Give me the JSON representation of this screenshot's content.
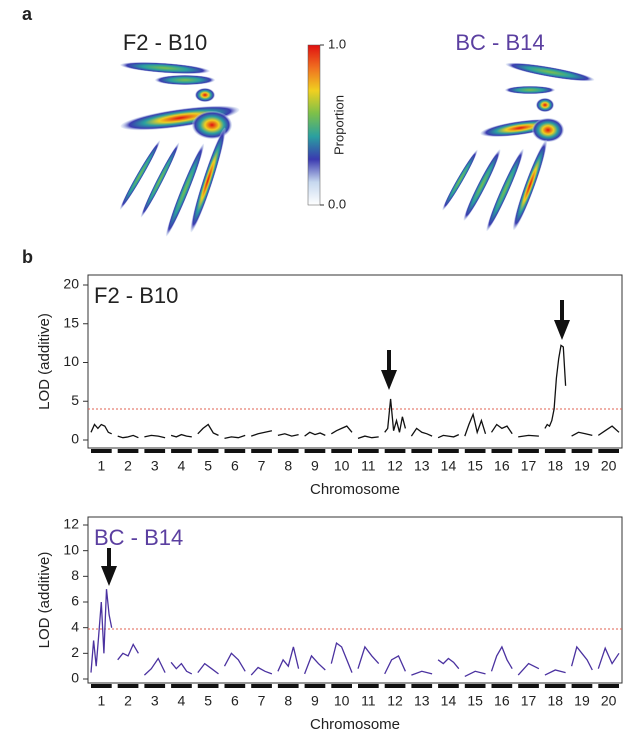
{
  "panel_labels": [
    "a",
    "b"
  ],
  "chart_data": [
    {
      "type": "colorbar",
      "titles": [
        "F2 - B10",
        "BC - B14"
      ],
      "title_colors": [
        "#222222",
        "#5b3fa0"
      ],
      "label": "Proportion",
      "zlim": [
        0,
        1
      ],
      "zticks": [
        {
          "value": 0,
          "label": "0.0"
        },
        {
          "value": 1,
          "label": "1.0"
        }
      ],
      "colors": [
        "#ffffff",
        "#c6d8ef",
        "#3a3ab0",
        "#2aa0a0",
        "#7cc04a",
        "#f0d020",
        "#f07020",
        "#e01010"
      ]
    },
    {
      "type": "lod",
      "title": "F2 - B10",
      "title_color": "#222222",
      "color": "#111111",
      "ylabel": "LOD (additive)",
      "xlabel": "Chromosome",
      "ylim": [
        0,
        20
      ],
      "yticks": [
        0,
        5,
        10,
        15,
        20
      ],
      "threshold": 4,
      "chromosomes": [
        {
          "label": "1",
          "values": [
            1,
            2,
            1.5,
            2,
            1.8,
            1,
            0.8
          ]
        },
        {
          "label": "2",
          "values": [
            0.5,
            0.3,
            0.4,
            0.6,
            0.3
          ]
        },
        {
          "label": "3",
          "values": [
            0.4,
            0.6,
            0.5,
            0.3
          ]
        },
        {
          "label": "4",
          "values": [
            0.6,
            0.4,
            0.7,
            0.5,
            0.4
          ]
        },
        {
          "label": "5",
          "values": [
            0.8,
            1.5,
            2,
            0.9,
            0.6
          ]
        },
        {
          "label": "6",
          "values": [
            0.2,
            0.4,
            0.3,
            0.6
          ]
        },
        {
          "label": "7",
          "values": [
            0.5,
            0.8,
            1,
            1.2
          ]
        },
        {
          "label": "8",
          "values": [
            0.6,
            0.8,
            0.5,
            0.7
          ]
        },
        {
          "label": "9",
          "values": [
            0.5,
            1,
            0.7,
            0.9,
            0.6
          ]
        },
        {
          "label": "10",
          "values": [
            0.8,
            1.2,
            1.5,
            1.8,
            1
          ]
        },
        {
          "label": "11",
          "values": [
            0.2,
            0.5,
            0.3,
            0.4
          ]
        },
        {
          "label": "12",
          "values": [
            1,
            1.5,
            5.3,
            1.2,
            2.5,
            1,
            3,
            1.5
          ]
        },
        {
          "label": "13",
          "values": [
            0.5,
            1.5,
            1,
            0.8,
            0.5
          ]
        },
        {
          "label": "14",
          "values": [
            0.3,
            0.6,
            0.5,
            0.4,
            0.7
          ]
        },
        {
          "label": "15",
          "values": [
            0.5,
            2,
            3.3,
            1,
            2.5,
            0.8
          ]
        },
        {
          "label": "16",
          "values": [
            1,
            2,
            1.5,
            1.8,
            0.8
          ]
        },
        {
          "label": "17",
          "values": [
            0.4,
            0.6,
            0.5
          ]
        },
        {
          "label": "18",
          "values": [
            1.5,
            2,
            1.8,
            2.5,
            4,
            8,
            10.5,
            12.2,
            12,
            7
          ]
        },
        {
          "label": "19",
          "values": [
            0.5,
            1,
            0.8,
            0.6
          ]
        },
        {
          "label": "20",
          "values": [
            0.6,
            1.2,
            1.8,
            1
          ]
        }
      ]
    },
    {
      "type": "lod",
      "title": "BC - B14",
      "title_color": "#5b3fa0",
      "color": "#4b32a0",
      "ylabel": "LOD (additive)",
      "xlabel": "Chromosome",
      "ylim": [
        0,
        12
      ],
      "yticks": [
        0,
        2,
        4,
        6,
        8,
        10,
        12
      ],
      "threshold": 3.9,
      "chromosomes": [
        {
          "label": "1",
          "values": [
            0.5,
            3,
            1,
            3.5,
            6,
            2,
            7,
            5,
            4
          ]
        },
        {
          "label": "2",
          "values": [
            1.5,
            2,
            1.8,
            2.7,
            2
          ]
        },
        {
          "label": "3",
          "values": [
            0.3,
            0.8,
            1.6,
            0.5
          ]
        },
        {
          "label": "4",
          "values": [
            1.3,
            0.8,
            1.2,
            0.6,
            0.4
          ]
        },
        {
          "label": "5",
          "values": [
            0.5,
            1.2,
            0.8,
            0.4
          ]
        },
        {
          "label": "6",
          "values": [
            1,
            2,
            1.5,
            0.6
          ]
        },
        {
          "label": "7",
          "values": [
            0.3,
            0.9,
            0.6,
            0.4
          ]
        },
        {
          "label": "8",
          "values": [
            0.6,
            1.5,
            1,
            2.5,
            0.8
          ]
        },
        {
          "label": "9",
          "values": [
            0.4,
            1.8,
            1.2,
            0.7
          ]
        },
        {
          "label": "10",
          "values": [
            1.2,
            2.8,
            2.5,
            1.5,
            0.5
          ]
        },
        {
          "label": "11",
          "values": [
            0.8,
            2.5,
            1.8,
            1.2
          ]
        },
        {
          "label": "12",
          "values": [
            0.4,
            1.5,
            1.8,
            0.6
          ]
        },
        {
          "label": "13",
          "values": [
            0.3,
            0.6,
            0.4
          ]
        },
        {
          "label": "14",
          "values": [
            1.5,
            1.2,
            1.6,
            1.3,
            0.8
          ]
        },
        {
          "label": "15",
          "values": [
            0.2,
            0.6,
            0.4
          ]
        },
        {
          "label": "16",
          "values": [
            0.6,
            1.8,
            2.5,
            1.5,
            0.8
          ]
        },
        {
          "label": "17",
          "values": [
            0.3,
            1.2,
            0.8
          ]
        },
        {
          "label": "18",
          "values": [
            0.3,
            0.7,
            0.5
          ]
        },
        {
          "label": "19",
          "values": [
            1,
            2.5,
            2,
            1.5,
            0.7
          ]
        },
        {
          "label": "20",
          "values": [
            0.8,
            2.4,
            1.2,
            2
          ]
        }
      ]
    }
  ]
}
